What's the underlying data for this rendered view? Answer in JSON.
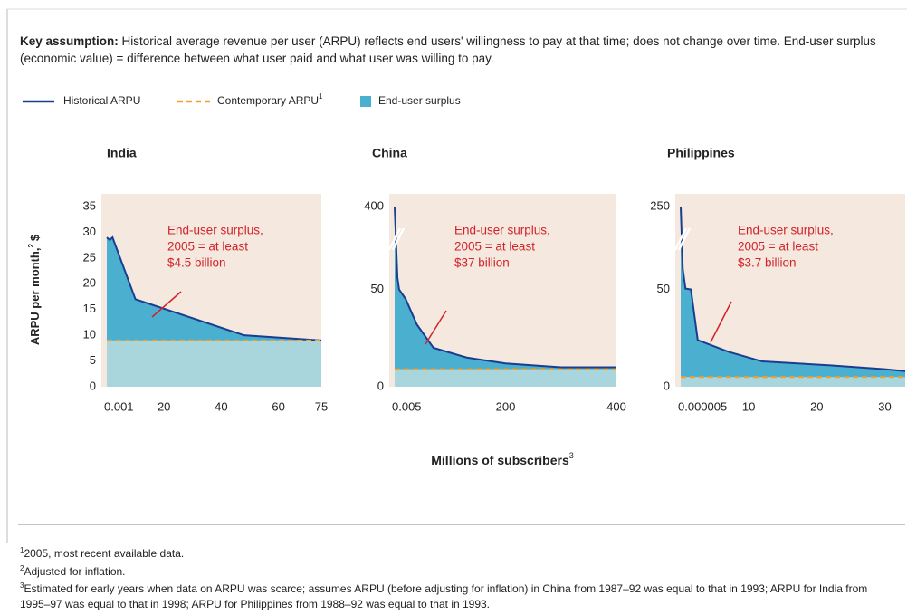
{
  "header": {
    "bold": "Key assumption:",
    "text": "Historical average revenue per user (ARPU) reflects end users' willingness to pay at that time; does not change over time. End-user surplus (economic value) = difference between what user paid and what user was willing to pay."
  },
  "surplus": {
    "label": "End-user surplus",
    "color": "#4bafcf",
    "base_color": "#a9d5dd"
  },
  "y_label": {
    "text": "ARPU per month,",
    "note": "2",
    "unit": "$"
  },
  "x_label": {
    "text": "Millions of subscribers",
    "note": "3"
  },
  "legend_note": "1",
  "footnotes": [
    {
      "mark": "1",
      "text": "2005, most recent available data."
    },
    {
      "mark": "2",
      "text": "Adjusted for inflation."
    },
    {
      "mark": "3",
      "text": "Estimated for early years when data on ARPU was scarce; assumes ARPU (before adjusting for inflation) in China from 1987–92 was equal to that in 1993; ARPU for India from 1995–97 was equal to that in 1998; ARPU for Philippines from 1988–92 was equal to that in 1993."
    }
  ],
  "chart_data": [
    {
      "type": "area_line",
      "title": "India",
      "annotation": [
        "End-user surplus,",
        "2005 = at least",
        "$4.5 billion"
      ],
      "xlim": [
        0.001,
        75
      ],
      "xticks": [
        0.001,
        20,
        40,
        60,
        75
      ],
      "ylim": [
        0,
        35
      ],
      "yticks": [
        0,
        5,
        10,
        15,
        20,
        25,
        30,
        35
      ],
      "y_break": false,
      "series": [
        {
          "name": "Historical ARPU",
          "color": "#1a3d8f",
          "style": "solid",
          "x": [
            0.001,
            1,
            2,
            4,
            10,
            48,
            75
          ],
          "values": [
            29,
            28.5,
            29,
            26,
            17,
            10,
            9
          ]
        },
        {
          "name": "Contemporary ARPU",
          "color": "#f0a030",
          "style": "dashed",
          "x": [
            0.001,
            75
          ],
          "values": [
            9,
            9
          ]
        }
      ]
    },
    {
      "type": "area_line",
      "title": "China",
      "annotation": [
        "End-user surplus,",
        "2005 = at least",
        "$37 billion"
      ],
      "xlim": [
        0.005,
        400
      ],
      "xticks": [
        0.005,
        200,
        400
      ],
      "ylim": [
        0,
        400
      ],
      "yticks": [
        0,
        50,
        400
      ],
      "y_break": true,
      "series": [
        {
          "name": "Historical ARPU",
          "color": "#1a3d8f",
          "style": "solid",
          "x": [
            0.005,
            5,
            8,
            20,
            40,
            70,
            130,
            200,
            300,
            400
          ],
          "values": [
            400,
            100,
            50,
            45,
            32,
            20,
            15,
            12,
            10,
            10
          ]
        },
        {
          "name": "Contemporary ARPU",
          "color": "#f0a030",
          "style": "dashed",
          "x": [
            0.005,
            400
          ],
          "values": [
            9,
            9
          ]
        }
      ]
    },
    {
      "type": "area_line",
      "title": "Philippines",
      "annotation": [
        "End-user surplus,",
        "2005 = at least",
        "$3.7 billion"
      ],
      "xlim": [
        5e-06,
        33
      ],
      "xticks": [
        5e-06,
        10,
        20,
        30
      ],
      "ylim": [
        0,
        250
      ],
      "yticks": [
        0,
        50,
        250
      ],
      "y_break": true,
      "series": [
        {
          "name": "Historical ARPU",
          "color": "#1a3d8f",
          "style": "solid",
          "x": [
            5e-06,
            0.3,
            0.7,
            1.5,
            2.5,
            7,
            12,
            22,
            30,
            33
          ],
          "values": [
            250,
            100,
            52,
            50,
            24,
            18,
            13,
            11,
            9,
            8
          ]
        },
        {
          "name": "Contemporary ARPU",
          "color": "#f0a030",
          "style": "dashed",
          "x": [
            5e-06,
            33
          ],
          "values": [
            5,
            5
          ]
        }
      ]
    }
  ]
}
